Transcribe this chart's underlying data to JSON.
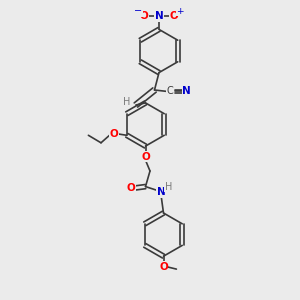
{
  "bg_color": "#ebebeb",
  "bond_color": "#3a3a3a",
  "atom_colors": {
    "O": "#ff0000",
    "N": "#0000cc",
    "C": "#3a3a3a",
    "H": "#7a7a7a"
  },
  "figsize": [
    3.0,
    3.0
  ],
  "dpi": 100
}
